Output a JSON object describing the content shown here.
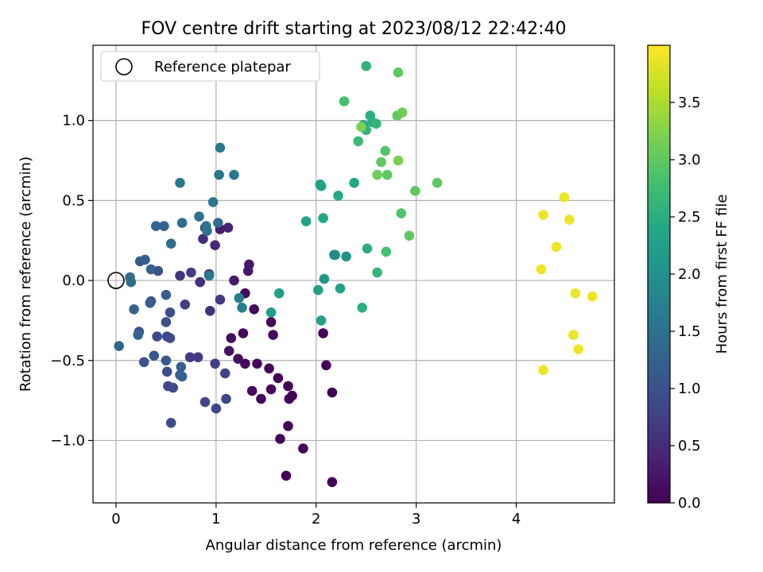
{
  "chart_data": {
    "type": "scatter",
    "title": "FOV centre drift starting at 2023/08/12 22:42:40",
    "xlabel": "Angular distance from reference (arcmin)",
    "ylabel": "Rotation from reference (arcmin)",
    "xlim": [
      -0.23,
      4.98
    ],
    "ylim": [
      -1.39,
      1.47
    ],
    "x_ticks": [
      0,
      1,
      2,
      3,
      4
    ],
    "y_ticks": [
      -1.0,
      -0.5,
      0.0,
      0.5,
      1.0
    ],
    "x_tick_labels": [
      "0",
      "1",
      "2",
      "3",
      "4"
    ],
    "y_tick_labels": [
      "−1.0",
      "−0.5",
      "0.0",
      "0.5",
      "1.0"
    ],
    "grid": true,
    "legend": {
      "position": "top-left",
      "entries": [
        "Reference platepar"
      ]
    },
    "reference": {
      "x": 0.0,
      "y": 0.0,
      "label": "Reference platepar"
    },
    "colorbar": {
      "label": "Hours from first FF file",
      "colormap": "viridis",
      "range": [
        0.0,
        4.0
      ],
      "ticks": [
        0.0,
        0.5,
        1.0,
        1.5,
        2.0,
        2.5,
        3.0,
        3.5
      ],
      "tick_labels": [
        "0.0",
        "0.5",
        "1.0",
        "1.5",
        "2.0",
        "2.5",
        "3.0",
        "3.5"
      ]
    },
    "points": [
      {
        "x": 1.38,
        "y": -0.18,
        "t": 0.1
      },
      {
        "x": 1.29,
        "y": -0.08,
        "t": 0.12
      },
      {
        "x": 1.27,
        "y": -0.33,
        "t": 0.08
      },
      {
        "x": 1.55,
        "y": -0.26,
        "t": 0.1
      },
      {
        "x": 1.57,
        "y": -0.34,
        "t": 0.12
      },
      {
        "x": 1.15,
        "y": -0.36,
        "t": 0.15
      },
      {
        "x": 1.13,
        "y": -0.44,
        "t": 0.18
      },
      {
        "x": 1.22,
        "y": -0.49,
        "t": 0.15
      },
      {
        "x": 1.29,
        "y": -0.52,
        "t": 0.12
      },
      {
        "x": 1.41,
        "y": -0.52,
        "t": 0.08
      },
      {
        "x": 1.53,
        "y": -0.55,
        "t": 0.05
      },
      {
        "x": 1.62,
        "y": -0.61,
        "t": 0.05
      },
      {
        "x": 1.36,
        "y": -0.69,
        "t": 0.1
      },
      {
        "x": 1.45,
        "y": -0.74,
        "t": 0.08
      },
      {
        "x": 1.55,
        "y": -0.68,
        "t": 0.05
      },
      {
        "x": 1.72,
        "y": -0.66,
        "t": 0.03
      },
      {
        "x": 1.73,
        "y": -0.74,
        "t": 0.03
      },
      {
        "x": 1.76,
        "y": -0.72,
        "t": 0.02
      },
      {
        "x": 1.72,
        "y": -0.91,
        "t": 0.03
      },
      {
        "x": 1.64,
        "y": -0.99,
        "t": 0.03
      },
      {
        "x": 1.87,
        "y": -1.05,
        "t": 0.02
      },
      {
        "x": 1.7,
        "y": -1.22,
        "t": 0.02
      },
      {
        "x": 2.16,
        "y": -1.26,
        "t": 0.01
      },
      {
        "x": 2.16,
        "y": -0.7,
        "t": 0.01
      },
      {
        "x": 2.1,
        "y": -0.53,
        "t": 0.02
      },
      {
        "x": 2.07,
        "y": -0.33,
        "t": 0.02
      },
      {
        "x": 1.33,
        "y": 0.1,
        "t": 0.25
      },
      {
        "x": 1.32,
        "y": 0.06,
        "t": 0.25
      },
      {
        "x": 1.18,
        "y": 0.0,
        "t": 0.3
      },
      {
        "x": 1.04,
        "y": 0.32,
        "t": 0.3
      },
      {
        "x": 1.12,
        "y": 0.33,
        "t": 0.4
      },
      {
        "x": 0.99,
        "y": 0.22,
        "t": 0.45
      },
      {
        "x": 0.87,
        "y": 0.26,
        "t": 0.5
      },
      {
        "x": 0.89,
        "y": 0.33,
        "t": 0.6
      },
      {
        "x": 0.84,
        "y": -0.01,
        "t": 0.55
      },
      {
        "x": 0.94,
        "y": -0.19,
        "t": 0.55
      },
      {
        "x": 1.04,
        "y": -0.12,
        "t": 0.65
      },
      {
        "x": 0.93,
        "y": 0.04,
        "t": 0.7
      },
      {
        "x": 0.75,
        "y": 0.05,
        "t": 0.7
      },
      {
        "x": 0.64,
        "y": 0.03,
        "t": 0.6
      },
      {
        "x": 0.69,
        "y": -0.15,
        "t": 0.75
      },
      {
        "x": 0.74,
        "y": -0.48,
        "t": 0.7
      },
      {
        "x": 0.82,
        "y": -0.48,
        "t": 0.7
      },
      {
        "x": 0.99,
        "y": -0.52,
        "t": 0.75
      },
      {
        "x": 1.09,
        "y": -0.58,
        "t": 0.8
      },
      {
        "x": 0.89,
        "y": -0.76,
        "t": 0.85
      },
      {
        "x": 1.0,
        "y": -0.8,
        "t": 0.85
      },
      {
        "x": 1.1,
        "y": -0.74,
        "t": 0.85
      },
      {
        "x": 0.55,
        "y": -0.89,
        "t": 0.9
      },
      {
        "x": 0.52,
        "y": -0.66,
        "t": 0.9
      },
      {
        "x": 0.57,
        "y": -0.67,
        "t": 0.9
      },
      {
        "x": 0.51,
        "y": -0.57,
        "t": 0.9
      },
      {
        "x": 0.51,
        "y": -0.35,
        "t": 0.9
      },
      {
        "x": 0.54,
        "y": -0.36,
        "t": 0.9
      },
      {
        "x": 0.41,
        "y": -0.35,
        "t": 0.9
      },
      {
        "x": 0.5,
        "y": -0.26,
        "t": 0.95
      },
      {
        "x": 0.54,
        "y": -0.2,
        "t": 0.95
      },
      {
        "x": 0.35,
        "y": -0.13,
        "t": 1.0
      },
      {
        "x": 0.42,
        "y": 0.06,
        "t": 1.0
      },
      {
        "x": 0.23,
        "y": -0.32,
        "t": 1.0
      },
      {
        "x": 0.28,
        "y": -0.51,
        "t": 1.0
      },
      {
        "x": 0.38,
        "y": -0.47,
        "t": 1.1
      },
      {
        "x": 0.5,
        "y": -0.5,
        "t": 1.1
      },
      {
        "x": 0.65,
        "y": -0.54,
        "t": 1.2
      },
      {
        "x": 0.66,
        "y": -0.6,
        "t": 1.2
      },
      {
        "x": 0.64,
        "y": -0.59,
        "t": 1.2
      },
      {
        "x": 0.5,
        "y": -0.09,
        "t": 1.2
      },
      {
        "x": 0.34,
        "y": -0.14,
        "t": 1.2
      },
      {
        "x": 0.18,
        "y": -0.18,
        "t": 1.25
      },
      {
        "x": 0.22,
        "y": -0.34,
        "t": 1.3
      },
      {
        "x": 0.03,
        "y": -0.41,
        "t": 1.3
      },
      {
        "x": 0.14,
        "y": 0.02,
        "t": 1.4
      },
      {
        "x": 0.15,
        "y": -0.01,
        "t": 1.4
      },
      {
        "x": 0.24,
        "y": 0.12,
        "t": 1.1
      },
      {
        "x": 0.29,
        "y": 0.13,
        "t": 1.2
      },
      {
        "x": 0.35,
        "y": 0.07,
        "t": 1.25
      },
      {
        "x": 0.4,
        "y": 0.34,
        "t": 1.3
      },
      {
        "x": 0.48,
        "y": 0.34,
        "t": 1.2
      },
      {
        "x": 0.55,
        "y": 0.23,
        "t": 1.4
      },
      {
        "x": 0.66,
        "y": 0.36,
        "t": 1.4
      },
      {
        "x": 0.83,
        "y": 0.4,
        "t": 1.5
      },
      {
        "x": 0.9,
        "y": 0.34,
        "t": 1.5
      },
      {
        "x": 0.91,
        "y": 0.31,
        "t": 1.5
      },
      {
        "x": 1.02,
        "y": 0.36,
        "t": 1.4
      },
      {
        "x": 0.97,
        "y": 0.49,
        "t": 1.6
      },
      {
        "x": 1.03,
        "y": 0.66,
        "t": 1.6
      },
      {
        "x": 1.18,
        "y": 0.66,
        "t": 1.6
      },
      {
        "x": 0.64,
        "y": 0.61,
        "t": 1.6
      },
      {
        "x": 1.04,
        "y": 0.83,
        "t": 1.6
      },
      {
        "x": 0.93,
        "y": 0.03,
        "t": 1.6
      },
      {
        "x": 1.23,
        "y": -0.11,
        "t": 1.7
      },
      {
        "x": 1.26,
        "y": -0.17,
        "t": 1.7
      },
      {
        "x": 1.55,
        "y": -0.2,
        "t": 2.2
      },
      {
        "x": 1.63,
        "y": -0.08,
        "t": 2.2
      },
      {
        "x": 2.02,
        "y": -0.06,
        "t": 2.3
      },
      {
        "x": 2.05,
        "y": -0.25,
        "t": 2.3
      },
      {
        "x": 2.08,
        "y": 0.01,
        "t": 2.1
      },
      {
        "x": 2.18,
        "y": 0.16,
        "t": 1.9
      },
      {
        "x": 2.19,
        "y": 0.16,
        "t": 1.9
      },
      {
        "x": 2.3,
        "y": 0.15,
        "t": 2.0
      },
      {
        "x": 2.24,
        "y": -0.05,
        "t": 2.3
      },
      {
        "x": 1.9,
        "y": 0.37,
        "t": 2.3
      },
      {
        "x": 2.07,
        "y": 0.39,
        "t": 2.4
      },
      {
        "x": 2.04,
        "y": 0.6,
        "t": 2.3
      },
      {
        "x": 2.05,
        "y": 0.59,
        "t": 2.3
      },
      {
        "x": 2.22,
        "y": 0.53,
        "t": 2.4
      },
      {
        "x": 2.38,
        "y": 0.61,
        "t": 2.4
      },
      {
        "x": 2.51,
        "y": 0.2,
        "t": 2.5
      },
      {
        "x": 2.46,
        "y": -0.17,
        "t": 2.5
      },
      {
        "x": 2.61,
        "y": 0.05,
        "t": 2.6
      },
      {
        "x": 2.7,
        "y": 0.18,
        "t": 2.8
      },
      {
        "x": 2.85,
        "y": 0.42,
        "t": 2.9
      },
      {
        "x": 2.93,
        "y": 0.28,
        "t": 3.0
      },
      {
        "x": 2.99,
        "y": 0.56,
        "t": 3.0
      },
      {
        "x": 3.21,
        "y": 0.61,
        "t": 3.0
      },
      {
        "x": 2.28,
        "y": 1.12,
        "t": 2.8
      },
      {
        "x": 2.42,
        "y": 0.87,
        "t": 2.7
      },
      {
        "x": 2.47,
        "y": 0.97,
        "t": 2.4
      },
      {
        "x": 2.5,
        "y": 0.94,
        "t": 2.6
      },
      {
        "x": 2.54,
        "y": 1.03,
        "t": 2.5
      },
      {
        "x": 2.56,
        "y": 0.99,
        "t": 2.5
      },
      {
        "x": 2.6,
        "y": 0.98,
        "t": 2.6
      },
      {
        "x": 2.45,
        "y": 0.96,
        "t": 3.2
      },
      {
        "x": 2.5,
        "y": 1.34,
        "t": 2.6
      },
      {
        "x": 2.82,
        "y": 1.3,
        "t": 3.0
      },
      {
        "x": 2.81,
        "y": 1.03,
        "t": 3.0
      },
      {
        "x": 2.86,
        "y": 1.05,
        "t": 3.1
      },
      {
        "x": 2.69,
        "y": 0.81,
        "t": 2.9
      },
      {
        "x": 2.65,
        "y": 0.74,
        "t": 3.0
      },
      {
        "x": 2.82,
        "y": 0.75,
        "t": 3.2
      },
      {
        "x": 2.61,
        "y": 0.66,
        "t": 3.1
      },
      {
        "x": 2.71,
        "y": 0.66,
        "t": 3.0
      },
      {
        "x": 4.48,
        "y": 0.52,
        "t": 3.9
      },
      {
        "x": 4.27,
        "y": 0.41,
        "t": 3.9
      },
      {
        "x": 4.53,
        "y": 0.38,
        "t": 3.9
      },
      {
        "x": 4.4,
        "y": 0.21,
        "t": 3.9
      },
      {
        "x": 4.25,
        "y": 0.07,
        "t": 3.9
      },
      {
        "x": 4.59,
        "y": -0.08,
        "t": 3.9
      },
      {
        "x": 4.76,
        "y": -0.1,
        "t": 3.9
      },
      {
        "x": 4.57,
        "y": -0.34,
        "t": 3.9
      },
      {
        "x": 4.62,
        "y": -0.43,
        "t": 3.9
      },
      {
        "x": 4.27,
        "y": -0.56,
        "t": 3.9
      }
    ]
  }
}
